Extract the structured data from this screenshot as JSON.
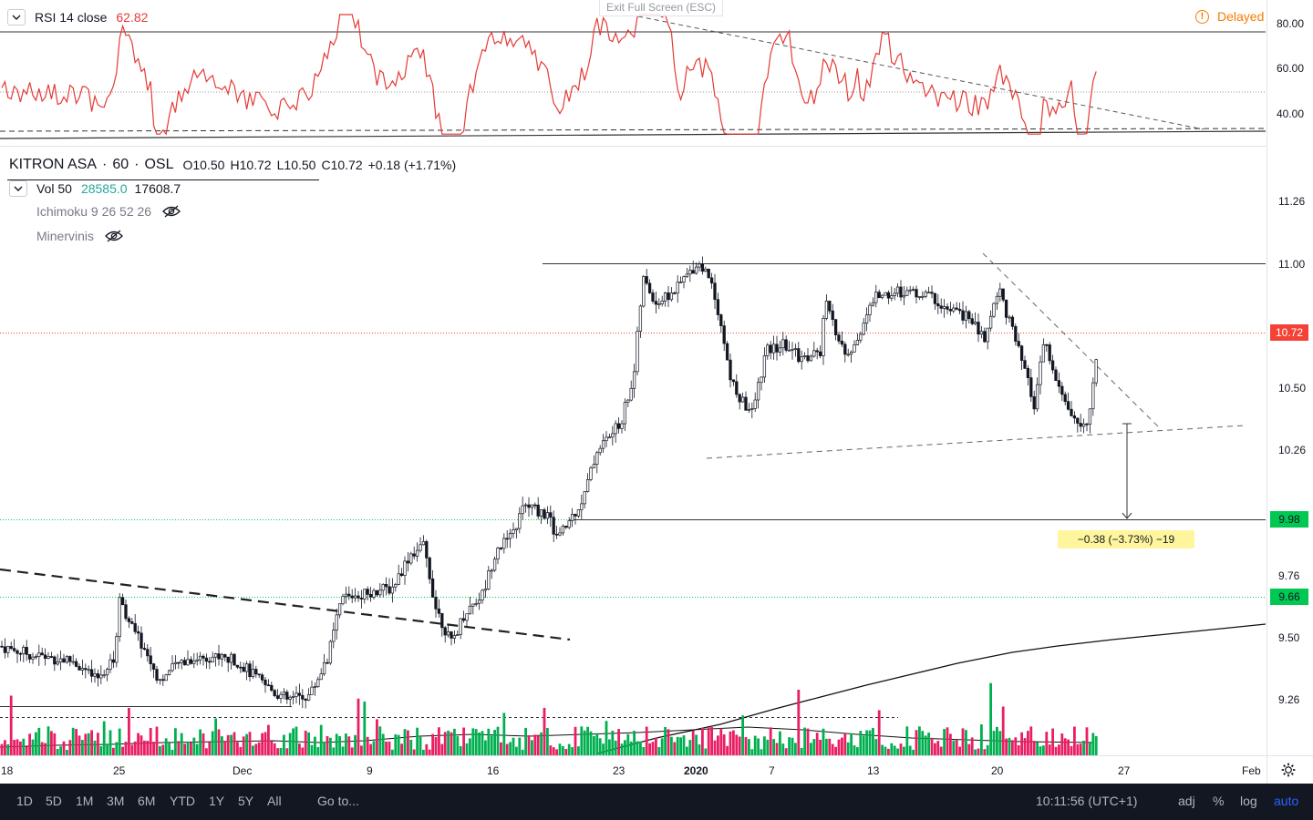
{
  "rsi": {
    "label": "RSI 14 close",
    "value": "62.82",
    "levels": [
      "80.00",
      "60.00",
      "40.00"
    ]
  },
  "exit_fullscreen": "Exit Full Screen (ESC)",
  "delayed": {
    "label": "Delayed",
    "icon": "info-icon"
  },
  "symbol": {
    "name": "KITRON ASA",
    "interval": "60",
    "exchange": "OSL",
    "o_label": "O",
    "o": "10.50",
    "h_label": "H",
    "h": "10.72",
    "l_label": "L",
    "l": "10.50",
    "c_label": "C",
    "c": "10.72",
    "change": "+0.18 (+1.71%)"
  },
  "indicators": {
    "vol_label": "Vol 50",
    "vol_value1": "28585.0",
    "vol_value2": "17608.7",
    "ichimoku": "Ichimoku 9 26 52 26",
    "minervinis": "Minervinis"
  },
  "price_axis": [
    "11.26",
    "11.00",
    "10.50",
    "10.26",
    "9.76",
    "9.50",
    "9.26"
  ],
  "price_badges": {
    "last": "10.72",
    "level1": "9.98",
    "level2": "9.66"
  },
  "measure_label": "−0.38 (−3.73%) −19",
  "time_axis": [
    "18",
    "25",
    "Dec",
    "9",
    "16",
    "23",
    "2020",
    "7",
    "13",
    "20",
    "27",
    "Feb"
  ],
  "footer": {
    "ranges": [
      "1D",
      "5D",
      "1M",
      "3M",
      "6M",
      "YTD",
      "1Y",
      "5Y",
      "All"
    ],
    "goto": "Go to...",
    "time": "10:11:56 (UTC+1)",
    "adj": "adj",
    "percent": "%",
    "log": "log",
    "auto": "auto"
  },
  "colors": {
    "up": "#26a69a",
    "down": "#ef5350",
    "vol_up": "#00b050",
    "vol_down": "#e91e63",
    "rsi_line": "#e53935",
    "accent": "#2962ff",
    "green_level": "#00c853",
    "red_level": "#f44336",
    "yellow_box": "#fff59d"
  },
  "chart_data": {
    "type": "candlestick",
    "title": "KITRON ASA · 60 · OSL",
    "ylim": [
      9.1,
      11.4
    ],
    "keypoints": [
      [
        0,
        9.44
      ],
      [
        40,
        9.4
      ],
      [
        80,
        9.38
      ],
      [
        105,
        9.3
      ],
      [
        125,
        9.38
      ],
      [
        132,
        9.66
      ],
      [
        140,
        9.55
      ],
      [
        155,
        9.45
      ],
      [
        175,
        9.3
      ],
      [
        200,
        9.38
      ],
      [
        230,
        9.4
      ],
      [
        260,
        9.38
      ],
      [
        290,
        9.28
      ],
      [
        315,
        9.22
      ],
      [
        340,
        9.24
      ],
      [
        360,
        9.4
      ],
      [
        375,
        9.64
      ],
      [
        400,
        9.66
      ],
      [
        430,
        9.68
      ],
      [
        450,
        9.82
      ],
      [
        465,
        9.85
      ],
      [
        478,
        9.6
      ],
      [
        495,
        9.45
      ],
      [
        510,
        9.58
      ],
      [
        530,
        9.66
      ],
      [
        545,
        9.85
      ],
      [
        560,
        9.88
      ],
      [
        575,
        10.02
      ],
      [
        600,
        9.98
      ],
      [
        612,
        9.88
      ],
      [
        625,
        9.96
      ],
      [
        640,
        10.05
      ],
      [
        655,
        10.25
      ],
      [
        680,
        10.35
      ],
      [
        695,
        10.55
      ],
      [
        705,
        10.95
      ],
      [
        720,
        10.85
      ],
      [
        740,
        10.9
      ],
      [
        765,
        11.02
      ],
      [
        780,
        10.95
      ],
      [
        790,
        10.78
      ],
      [
        800,
        10.55
      ],
      [
        812,
        10.45
      ],
      [
        825,
        10.4
      ],
      [
        840,
        10.65
      ],
      [
        860,
        10.68
      ],
      [
        880,
        10.62
      ],
      [
        900,
        10.65
      ],
      [
        905,
        10.85
      ],
      [
        920,
        10.7
      ],
      [
        930,
        10.62
      ],
      [
        945,
        10.75
      ],
      [
        960,
        10.88
      ],
      [
        990,
        10.9
      ],
      [
        1020,
        10.88
      ],
      [
        1040,
        10.82
      ],
      [
        1060,
        10.8
      ],
      [
        1080,
        10.7
      ],
      [
        1095,
        10.92
      ],
      [
        1105,
        10.8
      ],
      [
        1115,
        10.68
      ],
      [
        1125,
        10.55
      ],
      [
        1135,
        10.42
      ],
      [
        1145,
        10.7
      ],
      [
        1160,
        10.5
      ],
      [
        1175,
        10.4
      ],
      [
        1185,
        10.32
      ],
      [
        1195,
        10.4
      ],
      [
        1205,
        10.72
      ]
    ]
  }
}
